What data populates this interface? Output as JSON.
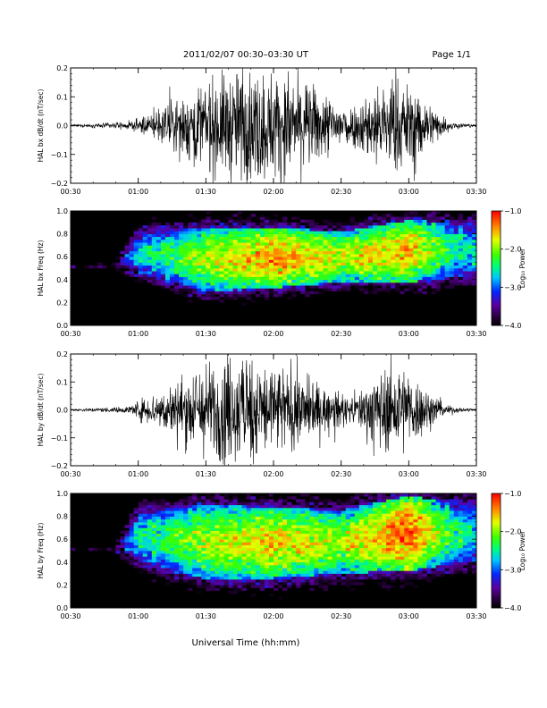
{
  "header": {
    "date_range": "2011/02/07  00:30–03:30 UT",
    "page": "Page 1/1"
  },
  "chart_data": [
    {
      "type": "line",
      "series": [
        {
          "name": "HAL bx dB/dt"
        }
      ],
      "ylabel": "HAL bx dB/dt (nT/sec)",
      "ylim": [
        -0.2,
        0.2
      ],
      "yticks": [
        "−0.2",
        "−0.1",
        "0.0",
        "0.1",
        "0.2"
      ],
      "xlim": [
        "00:30",
        "03:30"
      ],
      "xticks": [
        "00:30",
        "01:00",
        "01:30",
        "02:00",
        "02:30",
        "03:00",
        "03:30"
      ],
      "envelope": {
        "x": [
          "00:30",
          "00:55",
          "01:00",
          "01:10",
          "01:25",
          "01:40",
          "01:55",
          "02:10",
          "02:25",
          "02:35",
          "02:45",
          "02:55",
          "03:05",
          "03:15",
          "03:20",
          "03:30"
        ],
        "amplitude": [
          0.003,
          0.01,
          0.02,
          0.05,
          0.12,
          0.16,
          0.17,
          0.15,
          0.09,
          0.06,
          0.12,
          0.14,
          0.1,
          0.03,
          0.01,
          0.004
        ]
      }
    },
    {
      "type": "heatmap",
      "series": [
        {
          "name": "HAL bx Freq"
        }
      ],
      "ylabel": "HAL bx Freq (Hz)",
      "ylim": [
        0.0,
        1.0
      ],
      "yticks": [
        "0.0",
        "0.2",
        "0.4",
        "0.6",
        "0.8",
        "1.0"
      ],
      "xlim": [
        "00:30",
        "03:30"
      ],
      "xticks": [
        "00:30",
        "01:00",
        "01:30",
        "02:00",
        "02:30",
        "03:00",
        "03:30"
      ],
      "colorbar": {
        "label": "Log₁₀ Power",
        "range": [
          -4.0,
          -1.0
        ],
        "ticks": [
          "−4.0",
          "−3.0",
          "−2.0",
          "−1.0"
        ]
      },
      "blob": {
        "x": [
          "00:30",
          "00:50",
          "01:00",
          "01:30",
          "02:00",
          "02:30",
          "03:00",
          "03:20",
          "03:30"
        ],
        "upper_hz": [
          0.5,
          0.55,
          0.82,
          0.86,
          0.86,
          0.82,
          0.92,
          0.9,
          0.9
        ],
        "lower_hz": [
          0.5,
          0.5,
          0.45,
          0.3,
          0.33,
          0.38,
          0.38,
          0.42,
          0.42
        ],
        "peak_log_power": [
          -3.9,
          -3.6,
          -2.6,
          -1.9,
          -1.4,
          -1.8,
          -1.5,
          -2.4,
          -2.6
        ]
      }
    },
    {
      "type": "line",
      "series": [
        {
          "name": "HAL by dB/dt"
        }
      ],
      "ylabel": "HAL by dB/dt (nT/sec)",
      "ylim": [
        -0.2,
        0.2
      ],
      "yticks": [
        "−0.2",
        "−0.1",
        "0.0",
        "0.1",
        "0.2"
      ],
      "xlim": [
        "00:30",
        "03:30"
      ],
      "xticks": [
        "00:30",
        "01:00",
        "01:30",
        "02:00",
        "02:30",
        "03:00",
        "03:30"
      ],
      "envelope": {
        "x": [
          "00:30",
          "00:55",
          "01:00",
          "01:10",
          "01:25",
          "01:40",
          "01:55",
          "02:10",
          "02:25",
          "02:35",
          "02:45",
          "02:55",
          "03:05",
          "03:15",
          "03:20",
          "03:30"
        ],
        "amplitude": [
          0.003,
          0.01,
          0.03,
          0.06,
          0.13,
          0.17,
          0.16,
          0.12,
          0.06,
          0.04,
          0.11,
          0.15,
          0.09,
          0.02,
          0.01,
          0.004
        ]
      }
    },
    {
      "type": "heatmap",
      "series": [
        {
          "name": "HAL by Freq"
        }
      ],
      "ylabel": "HAL by Freq (Hz)",
      "ylim": [
        0.0,
        1.0
      ],
      "yticks": [
        "0.0",
        "0.2",
        "0.4",
        "0.6",
        "0.8",
        "1.0"
      ],
      "xlim": [
        "00:30",
        "03:30"
      ],
      "xticks": [
        "00:30",
        "01:00",
        "01:30",
        "02:00",
        "02:30",
        "03:00",
        "03:30"
      ],
      "colorbar": {
        "label": "Log₁₀ Power",
        "range": [
          -4.0,
          -1.0
        ],
        "ticks": [
          "−4.0",
          "−3.0",
          "−2.0",
          "−1.0"
        ]
      },
      "blob": {
        "x": [
          "00:30",
          "00:50",
          "01:00",
          "01:30",
          "02:00",
          "02:30",
          "03:00",
          "03:20",
          "03:30"
        ],
        "upper_hz": [
          0.5,
          0.55,
          0.85,
          0.9,
          0.88,
          0.85,
          0.98,
          0.92,
          0.92
        ],
        "lower_hz": [
          0.5,
          0.5,
          0.4,
          0.25,
          0.26,
          0.3,
          0.33,
          0.38,
          0.38
        ],
        "peak_log_power": [
          -3.9,
          -3.6,
          -2.5,
          -1.9,
          -1.6,
          -1.9,
          -1.2,
          -2.3,
          -2.6
        ]
      }
    }
  ],
  "xlabel": "Universal Time (hh:mm)"
}
